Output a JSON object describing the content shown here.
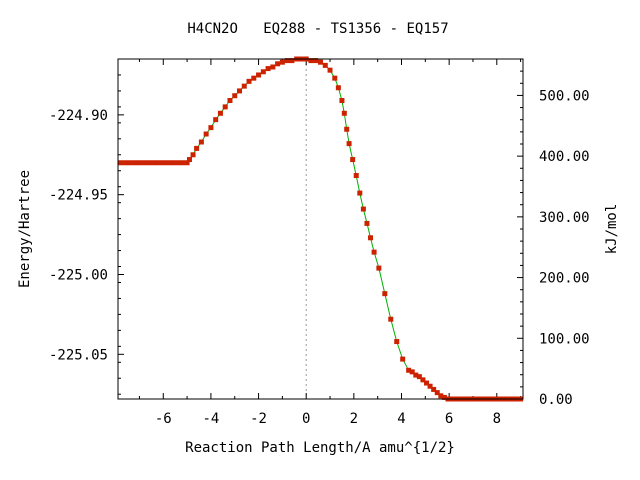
{
  "chart_data": {
    "type": "line",
    "title": "H4CN2O   EQ288 - TS1356 - EQ157",
    "xlabel": "Reaction Path Length/A amu^{1/2}",
    "ylabel": "Energy/Hartree",
    "y2label": "kJ/mol",
    "xlim": [
      -7.9,
      9.1
    ],
    "ylim": [
      -225.078,
      -224.865
    ],
    "y2lim": [
      0,
      560
    ],
    "x_ticks": [
      -6,
      -4,
      -2,
      0,
      2,
      4,
      6,
      8
    ],
    "x_tick_labels": [
      "-6",
      "-4",
      "-2",
      "0",
      "2",
      "4",
      "6",
      "8"
    ],
    "y_ticks": [
      -224.9,
      -224.95,
      -225.0,
      -225.05
    ],
    "y_tick_labels": [
      "-224.90",
      "-224.95",
      "-225.00",
      "-225.05"
    ],
    "y2_ticks": [
      500,
      400,
      300,
      200,
      100,
      0
    ],
    "y2_tick_labels": [
      "500.00",
      "400.00",
      "300.00",
      "200.00",
      "100.00",
      "0.00"
    ],
    "ts_line_x": 0,
    "grid": false,
    "colors": {
      "line": "#00b000",
      "marker": "#cc2200",
      "ts_line": "#999999"
    },
    "series": [
      {
        "x": [
          -7.8,
          -7.6,
          -7.4,
          -7.2,
          -7.0,
          -6.8,
          -6.6,
          -6.4,
          -6.2,
          -6.0,
          -5.8,
          -5.6,
          -5.4,
          -5.2,
          -5.0,
          -4.9,
          -4.75,
          -4.6,
          -4.4,
          -4.2,
          -4.0,
          -3.8,
          -3.6,
          -3.4,
          -3.2,
          -3.0,
          -2.8,
          -2.6,
          -2.4,
          -2.2,
          -2.0,
          -1.8,
          -1.6,
          -1.4,
          -1.2,
          -1.0,
          -0.8,
          -0.6,
          -0.4,
          -0.2,
          0.0,
          0.2,
          0.4,
          0.6,
          0.8,
          1.0,
          1.2,
          1.35,
          1.5,
          1.6,
          1.7,
          1.8,
          1.95,
          2.1,
          2.25,
          2.4,
          2.55,
          2.7,
          2.85,
          3.05,
          3.3,
          3.55,
          3.8,
          4.05,
          4.3,
          4.45,
          4.6,
          4.75,
          4.9,
          5.05,
          5.2,
          5.35,
          5.5,
          5.65,
          5.8,
          5.95,
          6.1,
          6.25,
          6.4,
          6.6,
          6.8,
          7.0,
          7.2,
          7.4,
          7.6,
          7.8,
          8.0,
          8.2,
          8.4,
          8.6,
          8.8,
          9.0
        ],
        "y": [
          -224.93,
          -224.93,
          -224.93,
          -224.93,
          -224.93,
          -224.93,
          -224.93,
          -224.93,
          -224.93,
          -224.93,
          -224.93,
          -224.93,
          -224.93,
          -224.93,
          -224.93,
          -224.928,
          -224.925,
          -224.921,
          -224.917,
          -224.912,
          -224.908,
          -224.903,
          -224.899,
          -224.895,
          -224.891,
          -224.888,
          -224.885,
          -224.882,
          -224.879,
          -224.877,
          -224.875,
          -224.873,
          -224.871,
          -224.87,
          -224.868,
          -224.867,
          -224.866,
          -224.866,
          -224.865,
          -224.865,
          -224.865,
          -224.866,
          -224.866,
          -224.867,
          -224.869,
          -224.872,
          -224.877,
          -224.883,
          -224.891,
          -224.899,
          -224.909,
          -224.918,
          -224.928,
          -224.938,
          -224.949,
          -224.959,
          -224.968,
          -224.977,
          -224.986,
          -224.996,
          -225.012,
          -225.028,
          -225.042,
          -225.053,
          -225.06,
          -225.061,
          -225.063,
          -225.064,
          -225.066,
          -225.068,
          -225.07,
          -225.072,
          -225.074,
          -225.076,
          -225.077,
          -225.078,
          -225.078,
          -225.078,
          -225.078,
          -225.078,
          -225.078,
          -225.078,
          -225.078,
          -225.078,
          -225.078,
          -225.078,
          -225.078,
          -225.078,
          -225.078,
          -225.078,
          -225.078,
          -225.078
        ]
      }
    ]
  }
}
